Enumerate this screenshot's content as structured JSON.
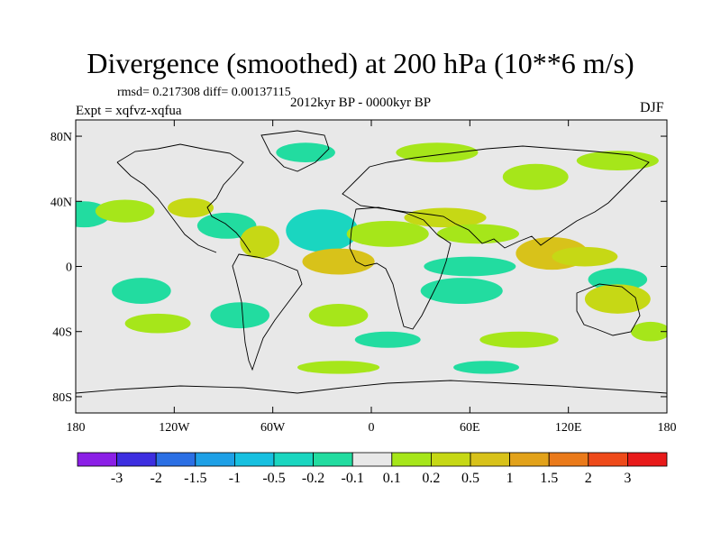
{
  "header": {
    "title": "Divergence (smoothed) at 200 hPa (10**6 m/s)",
    "stats": "rmsd= 0.217308 diff= 0.00137115",
    "subtitle": "2012kyr BP - 0000kyr BP",
    "expt": "Expt = xqfvz-xqfua",
    "season": "DJF"
  },
  "chart_data": {
    "type": "heatmap",
    "title": "Divergence (smoothed) at 200 hPa (10**6 m/s)",
    "x_axis": {
      "range": [
        -180,
        180
      ],
      "ticks": [
        -180,
        -120,
        -60,
        0,
        60,
        120,
        180
      ],
      "tick_labels": [
        "180",
        "120W",
        "60W",
        "0",
        "60E",
        "120E",
        "180"
      ]
    },
    "y_axis": {
      "range": [
        -90,
        90
      ],
      "ticks": [
        80,
        40,
        0,
        -40,
        -80
      ],
      "tick_labels": [
        "80N",
        "40N",
        "0",
        "40S",
        "80S"
      ]
    },
    "colorbar": {
      "colors": [
        "#8b1fe6",
        "#3d2ee0",
        "#2b6fe4",
        "#1ea0e6",
        "#17c0e0",
        "#1ad6c0",
        "#22dca0",
        "#e8e8e8",
        "#a6e61a",
        "#c6d815",
        "#d8c21a",
        "#e2a21a",
        "#ea7a1a",
        "#ee4a1a",
        "#e81a1a"
      ],
      "boundaries": [
        -3,
        -2,
        -1.5,
        -1,
        -0.5,
        -0.2,
        -0.1,
        0.1,
        0.2,
        0.5,
        1,
        1.5,
        2,
        3
      ],
      "labels": [
        "-3",
        "-2",
        "-1.5",
        "-1",
        "-0.5",
        "-0.2",
        "-0.1",
        "0.1",
        "0.2",
        "0.5",
        "1",
        "1.5",
        "2",
        "3"
      ]
    },
    "anomaly_regions": [
      {
        "lon": -175,
        "lat": 32,
        "rx": 16,
        "ry": 8,
        "value": -0.15
      },
      {
        "lon": -150,
        "lat": 34,
        "rx": 18,
        "ry": 7,
        "value": 0.15
      },
      {
        "lon": -110,
        "lat": 36,
        "rx": 14,
        "ry": 6,
        "value": 0.3
      },
      {
        "lon": -88,
        "lat": 25,
        "rx": 18,
        "ry": 8,
        "value": -0.15
      },
      {
        "lon": -68,
        "lat": 15,
        "rx": 12,
        "ry": 10,
        "value": 0.3
      },
      {
        "lon": -30,
        "lat": 22,
        "rx": 22,
        "ry": 13,
        "value": -0.35
      },
      {
        "lon": -20,
        "lat": 3,
        "rx": 22,
        "ry": 8,
        "value": 0.7
      },
      {
        "lon": 10,
        "lat": 20,
        "rx": 25,
        "ry": 8,
        "value": 0.15
      },
      {
        "lon": 45,
        "lat": 30,
        "rx": 25,
        "ry": 6,
        "value": 0.3
      },
      {
        "lon": 65,
        "lat": 20,
        "rx": 25,
        "ry": 6,
        "value": 0.15
      },
      {
        "lon": 60,
        "lat": 0,
        "rx": 28,
        "ry": 6,
        "value": -0.15
      },
      {
        "lon": 110,
        "lat": 8,
        "rx": 22,
        "ry": 10,
        "value": 0.7
      },
      {
        "lon": 130,
        "lat": 6,
        "rx": 20,
        "ry": 6,
        "value": 0.3
      },
      {
        "lon": 150,
        "lat": -8,
        "rx": 18,
        "ry": 7,
        "value": -0.15
      },
      {
        "lon": 150,
        "lat": -20,
        "rx": 20,
        "ry": 9,
        "value": 0.3
      },
      {
        "lon": 55,
        "lat": -15,
        "rx": 25,
        "ry": 8,
        "value": -0.15
      },
      {
        "lon": -20,
        "lat": -30,
        "rx": 18,
        "ry": 7,
        "value": 0.15
      },
      {
        "lon": -80,
        "lat": -30,
        "rx": 18,
        "ry": 8,
        "value": -0.15
      },
      {
        "lon": -140,
        "lat": -15,
        "rx": 18,
        "ry": 8,
        "value": -0.15
      },
      {
        "lon": -130,
        "lat": -35,
        "rx": 20,
        "ry": 6,
        "value": 0.15
      },
      {
        "lon": 10,
        "lat": -45,
        "rx": 20,
        "ry": 5,
        "value": -0.15
      },
      {
        "lon": 90,
        "lat": -45,
        "rx": 24,
        "ry": 5,
        "value": 0.15
      },
      {
        "lon": 170,
        "lat": -40,
        "rx": 12,
        "ry": 6,
        "value": 0.15
      },
      {
        "lon": -20,
        "lat": -62,
        "rx": 25,
        "ry": 4,
        "value": 0.15
      },
      {
        "lon": 70,
        "lat": -62,
        "rx": 20,
        "ry": 4,
        "value": -0.15
      },
      {
        "lon": -40,
        "lat": 70,
        "rx": 18,
        "ry": 6,
        "value": -0.15
      },
      {
        "lon": 40,
        "lat": 70,
        "rx": 25,
        "ry": 6,
        "value": 0.15
      },
      {
        "lon": 100,
        "lat": 55,
        "rx": 20,
        "ry": 8,
        "value": 0.15
      },
      {
        "lon": 150,
        "lat": 65,
        "rx": 25,
        "ry": 6,
        "value": 0.15
      }
    ]
  }
}
